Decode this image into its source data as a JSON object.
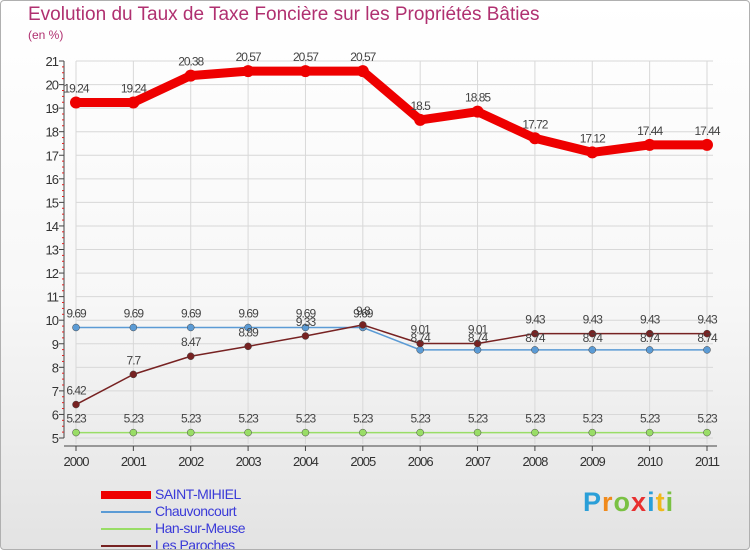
{
  "title": "Evolution du Taux de Taxe Foncière sur les Propriétés Bâties",
  "subtitle": "(en %)",
  "brand": {
    "letters": [
      "P",
      "r",
      "o",
      "x",
      "i",
      "t",
      "i"
    ],
    "colors": [
      "#2a9fd8",
      "#f08a1c",
      "#7ac143",
      "#e83030",
      "#2a9fd8",
      "#f0b81c",
      "#7ac143"
    ]
  },
  "chart_data": {
    "type": "line",
    "x": [
      "2000",
      "2001",
      "2002",
      "2003",
      "2004",
      "2005",
      "2006",
      "2007",
      "2008",
      "2009",
      "2010",
      "2011"
    ],
    "ylim": [
      5,
      21
    ],
    "yticks": [
      "5",
      "6",
      "7",
      "8",
      "9",
      "10",
      "11",
      "12",
      "13",
      "14",
      "15",
      "16",
      "17",
      "18",
      "19",
      "20",
      "21"
    ],
    "series": [
      {
        "name": "SAINT-MIHIEL",
        "color": "#ee0000",
        "width": 9,
        "values": [
          19.24,
          19.24,
          20.38,
          20.57,
          20.57,
          20.57,
          18.5,
          18.85,
          17.72,
          17.12,
          17.44,
          17.44
        ],
        "labels": [
          "19.24",
          "19.24",
          "20.38",
          "20.57",
          "20.57",
          "20.57",
          "18.5",
          "18.85",
          "17.72",
          "17.12",
          "17.44",
          "17.44"
        ]
      },
      {
        "name": "Chauvoncourt",
        "color": "#5b9bd5",
        "width": 1.5,
        "values": [
          9.69,
          9.69,
          9.69,
          9.69,
          9.69,
          9.69,
          8.74,
          8.74,
          8.74,
          8.74,
          8.74,
          8.74
        ],
        "labels": [
          "9.69",
          "9.69",
          "9.69",
          "9.69",
          "9.69",
          "9.69",
          "8.74",
          "8.74",
          "8.74",
          "8.74",
          "8.74",
          "8.74"
        ]
      },
      {
        "name": "Han-sur-Meuse",
        "color": "#99dd66",
        "width": 1.5,
        "values": [
          5.23,
          5.23,
          5.23,
          5.23,
          5.23,
          5.23,
          5.23,
          5.23,
          5.23,
          5.23,
          5.23,
          5.23
        ],
        "labels": [
          "5.23",
          "5.23",
          "5.23",
          "5.23",
          "5.23",
          "5.23",
          "5.23",
          "5.23",
          "5.23",
          "5.23",
          "5.23",
          "5.23"
        ]
      },
      {
        "name": "Les Paroches",
        "color": "#772222",
        "width": 1.5,
        "values": [
          6.42,
          7.7,
          8.47,
          8.89,
          9.33,
          9.8,
          9.01,
          9.01,
          9.43,
          9.43,
          9.43,
          9.43
        ],
        "labels": [
          "6.42",
          "7.7",
          "8.47",
          "8.89",
          "9.33",
          "9.8",
          "9.01",
          "9.01",
          "9.43",
          "9.43",
          "9.43",
          "9.43"
        ]
      }
    ]
  }
}
